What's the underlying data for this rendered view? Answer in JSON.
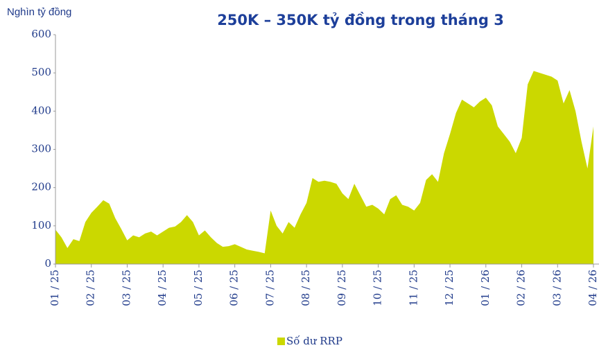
{
  "chart_data": {
    "type": "area",
    "title": "250K – 350K tỷ đồng trong tháng 3",
    "y_axis_label": "Nghìn tỷ đồng",
    "categories": [
      "01 / 25",
      null,
      null,
      null,
      null,
      null,
      "02 / 25",
      null,
      null,
      null,
      null,
      null,
      "03 / 25",
      null,
      null,
      null,
      null,
      null,
      "04 / 25",
      null,
      null,
      null,
      null,
      null,
      "05 / 25",
      null,
      null,
      null,
      null,
      null,
      "06 / 25",
      null,
      null,
      null,
      null,
      null,
      "07 / 25",
      null,
      null,
      null,
      null,
      null,
      "08 / 25",
      null,
      null,
      null,
      null,
      null,
      "09 / 25",
      null,
      null,
      null,
      null,
      null,
      "10 / 25",
      null,
      null,
      null,
      null,
      null,
      "11 / 25",
      null,
      null,
      null,
      null,
      null,
      "12 / 25",
      null,
      null,
      null,
      null,
      null,
      "01 / 26",
      null,
      null,
      null,
      null,
      null,
      "02 / 26",
      null,
      null,
      null,
      null,
      null,
      "03 / 26",
      null,
      null,
      null,
      null,
      null,
      "04 / 26"
    ],
    "series": [
      {
        "name": "Số dư RRP",
        "color": "#cbd800",
        "values": [
          90,
          70,
          42,
          65,
          60,
          110,
          134,
          150,
          167,
          158,
          120,
          92,
          62,
          75,
          70,
          80,
          85,
          75,
          85,
          95,
          98,
          110,
          128,
          110,
          75,
          88,
          70,
          55,
          45,
          47,
          52,
          45,
          38,
          35,
          32,
          28,
          140,
          100,
          80,
          110,
          95,
          130,
          160,
          225,
          215,
          218,
          215,
          210,
          185,
          170,
          210,
          180,
          150,
          155,
          145,
          130,
          170,
          180,
          155,
          150,
          140,
          160,
          220,
          235,
          215,
          290,
          340,
          395,
          430,
          420,
          410,
          425,
          435,
          415,
          360,
          340,
          320,
          290,
          330,
          470,
          505,
          500,
          495,
          490,
          480,
          420,
          455,
          400,
          320,
          250,
          360
        ]
      }
    ],
    "ylim": [
      0,
      600
    ],
    "yticks": [
      0,
      100,
      200,
      300,
      400,
      500,
      600
    ],
    "legend": "bottom"
  }
}
